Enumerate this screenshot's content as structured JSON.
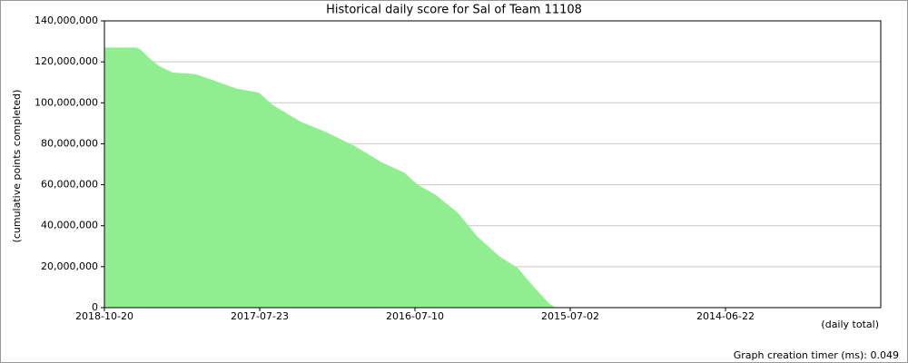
{
  "chart_data": {
    "type": "area",
    "title": "Historical daily score for Sal of Team 11108",
    "ylabel": "(cumulative points completed)",
    "xlabel": "(daily total)",
    "footer": "Graph creation timer (ms): 0.049",
    "color": "#90ee90",
    "grid": true,
    "x": [
      0,
      92,
      105,
      132,
      158,
      197,
      263,
      316,
      382,
      447,
      487,
      566,
      645,
      724,
      803,
      868,
      908,
      961,
      1026,
      1079,
      1145,
      1197,
      1250,
      1289,
      1308
    ],
    "values": [
      127000000,
      127000000,
      126000000,
      121500000,
      118000000,
      114800000,
      114000000,
      111000000,
      107000000,
      105000000,
      99000000,
      91000000,
      85500000,
      79000000,
      71000000,
      66000000,
      60000000,
      55000000,
      46000000,
      35000000,
      25000000,
      19500000,
      9000000,
      2000000,
      0
    ],
    "xlim": [
      0,
      2250
    ],
    "xticks": [
      {
        "value": 0,
        "label": "2018-10-20"
      },
      {
        "value": 450,
        "label": "2017-07-23"
      },
      {
        "value": 900,
        "label": "2016-07-10"
      },
      {
        "value": 1350,
        "label": "2015-07-02"
      },
      {
        "value": 1800,
        "label": "2014-06-22"
      }
    ],
    "ylim": [
      0,
      140000000
    ],
    "yticks": [
      0,
      {
        "value": 20000000,
        "label": "20,000,000"
      },
      {
        "value": 40000000,
        "label": "40,000,000"
      },
      {
        "value": 60000000,
        "label": "60,000,000"
      },
      {
        "value": 80000000,
        "label": "80,000,000"
      },
      {
        "value": 100000000,
        "label": "100,000,000"
      },
      {
        "value": 120000000,
        "label": "120,000,000"
      },
      {
        "value": 140000000,
        "label": "140,000,000"
      }
    ]
  }
}
